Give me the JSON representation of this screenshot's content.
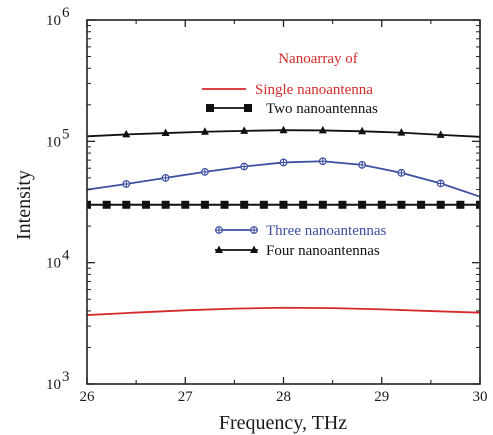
{
  "chart_data": {
    "type": "line",
    "title": "",
    "xlabel": "Frequency, THz",
    "ylabel": "Intensity",
    "xlim": [
      26,
      30
    ],
    "ylim": [
      1000,
      1000000
    ],
    "yscale": "log",
    "grid": false,
    "legend_heading": "Nanoarray of",
    "x_ticks": [
      26,
      27,
      28,
      29,
      30
    ],
    "x_tick_labels": [
      "26",
      "27",
      "28",
      "29",
      "30"
    ],
    "y_ticks": [
      1000,
      10000,
      100000,
      1000000
    ],
    "y_tick_labels": [
      {
        "base": "10",
        "exp": "3"
      },
      {
        "base": "10",
        "exp": "4"
      },
      {
        "base": "10",
        "exp": "5"
      },
      {
        "base": "10",
        "exp": "6"
      }
    ],
    "series": [
      {
        "name": "Single nanoantenna",
        "color": "#d42a2a",
        "marker": "none",
        "label_color": "#d42a2a",
        "x": [
          26.0,
          26.5,
          27.0,
          27.5,
          28.0,
          28.5,
          29.0,
          29.5,
          30.0
        ],
        "y": [
          3700,
          3880,
          4050,
          4180,
          4250,
          4220,
          4120,
          3990,
          3870
        ]
      },
      {
        "name": "Two nanoantennas",
        "color": "#111111",
        "marker": "square",
        "label_color": "#111111",
        "x": [
          26.0,
          26.2,
          26.4,
          26.6,
          26.8,
          27.0,
          27.2,
          27.4,
          27.6,
          27.8,
          28.0,
          28.2,
          28.4,
          28.6,
          28.8,
          29.0,
          29.2,
          29.4,
          29.6,
          29.8,
          30.0
        ],
        "y": [
          30000,
          30000,
          30000,
          30000,
          30000,
          30000,
          30000,
          30000,
          30000,
          30000,
          30000,
          30000,
          30000,
          30000,
          30000,
          30000,
          30000,
          30000,
          30000,
          30000,
          30000
        ]
      },
      {
        "name": "Three nanoantennas",
        "color": "#3c4fa0",
        "marker": "plus",
        "label_color": "#3c4fa0",
        "x": [
          26.0,
          26.4,
          26.8,
          27.2,
          27.6,
          28.0,
          28.4,
          28.8,
          29.2,
          29.6,
          30.0
        ],
        "y": [
          40000,
          44500,
          50000,
          56000,
          62000,
          67000,
          68500,
          64000,
          55000,
          45000,
          35000
        ]
      },
      {
        "name": "Four nanoantennas",
        "color": "#111111",
        "marker": "triangle",
        "label_color": "#111111",
        "x": [
          26.0,
          26.4,
          26.8,
          27.2,
          27.6,
          28.0,
          28.4,
          28.8,
          29.2,
          29.6,
          30.0
        ],
        "y": [
          110000,
          114000,
          117000,
          120000,
          122000,
          123500,
          123000,
          121000,
          118000,
          113000,
          109000
        ]
      }
    ],
    "legend": {
      "placement": "upper-center",
      "heading_color": "#d42a2a"
    }
  }
}
